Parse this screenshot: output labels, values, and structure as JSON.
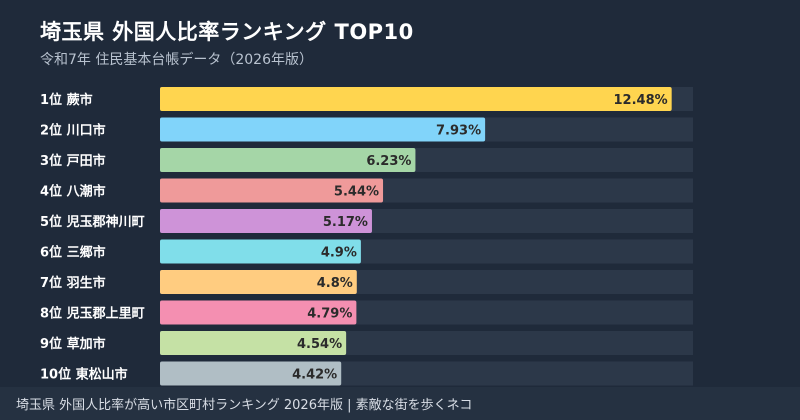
{
  "header": {
    "title": "埼玉県 外国人比率ランキング TOP10",
    "subtitle": "令和7年 住民基本台帳データ（2026年版）"
  },
  "footer": {
    "text": "埼玉県 外国人比率が高い市区町村ランキング 2026年版 | 素敵な街を歩くネコ"
  },
  "colors": {
    "background": "#1f2a3a",
    "track": "#2c3849",
    "footer_bg": "#253141"
  },
  "chart_data": {
    "type": "bar",
    "orientation": "horizontal",
    "title": "埼玉県 外国人比率ランキング TOP10",
    "subtitle": "令和7年 住民基本台帳データ（2026年版）",
    "value_suffix": "%",
    "xlim": [
      0,
      13
    ],
    "grid": false,
    "categories": [
      "1位 蕨市",
      "2位 川口市",
      "3位 戸田市",
      "4位 八潮市",
      "5位 児玉郡神川町",
      "6位 三郷市",
      "7位 羽生市",
      "8位 児玉郡上里町",
      "9位 草加市",
      "10位 東松山市"
    ],
    "values": [
      12.48,
      7.93,
      6.23,
      5.44,
      5.17,
      4.9,
      4.8,
      4.79,
      4.54,
      4.42
    ],
    "bar_colors": [
      "#ffd54f",
      "#81d4fa",
      "#a5d6a7",
      "#ef9a9a",
      "#ce93d8",
      "#80deea",
      "#ffcc80",
      "#f48fb1",
      "#c5e1a5",
      "#b0bec5"
    ]
  }
}
